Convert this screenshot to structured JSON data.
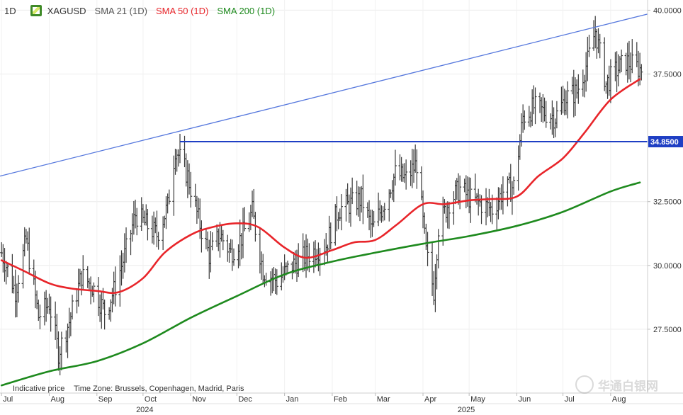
{
  "legend": {
    "timeframe": "1D",
    "symbol": "XAGUSD",
    "sma21": "SMA 21 (1D)",
    "sma50": "SMA 50 (1D)",
    "sma200": "SMA 200 (1D)"
  },
  "footer": {
    "note": "Indicative price",
    "timezone": "Time Zone: Brussels, Copenhagen, Madrid, Paris"
  },
  "watermark": {
    "text": "华通白银网",
    "icon": "logo-circle-icon"
  },
  "colors": {
    "sma50": "#e8252a",
    "sma200": "#1e8a1e",
    "trendline": "#5577dd",
    "level": "#1f3fc4",
    "level_label_bg": "#1f3fc4",
    "bars": "#3a3a3a"
  },
  "chart_data": {
    "type": "ohlc",
    "title": "",
    "xlabel": "",
    "ylabel": "",
    "ylim": [
      25.0,
      40.4
    ],
    "yticks": [
      27.5,
      30.0,
      32.5,
      37.5,
      40.0
    ],
    "ytick_labels": [
      "27.5000",
      "30.0000",
      "32.5000",
      "37.5000",
      "40.0000"
    ],
    "xlim": [
      "2024-06-30",
      "2025-08-25"
    ],
    "month_ticks": [
      {
        "date": "2024-07-01",
        "label": "Jul"
      },
      {
        "date": "2024-08-01",
        "label": "Aug"
      },
      {
        "date": "2024-09-01",
        "label": "Sep"
      },
      {
        "date": "2024-10-01",
        "label": "Oct"
      },
      {
        "date": "2024-11-01",
        "label": "Nov"
      },
      {
        "date": "2024-12-01",
        "label": "Dec"
      },
      {
        "date": "2025-01-01",
        "label": "Jan"
      },
      {
        "date": "2025-02-01",
        "label": "Feb"
      },
      {
        "date": "2025-03-01",
        "label": "Mar"
      },
      {
        "date": "2025-04-01",
        "label": "Apr"
      },
      {
        "date": "2025-05-01",
        "label": "May"
      },
      {
        "date": "2025-06-01",
        "label": "Jun"
      },
      {
        "date": "2025-07-01",
        "label": "Jul"
      },
      {
        "date": "2025-08-01",
        "label": "Aug"
      }
    ],
    "year_ticks": [
      {
        "date": "2024-10-02",
        "label": "2024"
      },
      {
        "date": "2025-04-29",
        "label": "2025"
      }
    ],
    "horizontal_level": {
      "value": 34.85,
      "label": "34.8500",
      "from_date": "2024-10-25"
    },
    "trendline": {
      "start": {
        "date": "2024-06-30",
        "value": 33.5
      },
      "end": {
        "date": "2025-08-25",
        "value": 39.85
      }
    },
    "price_path": [
      [
        "2024-07-01",
        30.5
      ],
      [
        "2024-07-10",
        29.0
      ],
      [
        "2024-07-17",
        31.0
      ],
      [
        "2024-07-25",
        28.0
      ],
      [
        "2024-08-01",
        28.5
      ],
      [
        "2024-08-07",
        26.6
      ],
      [
        "2024-08-14",
        27.8
      ],
      [
        "2024-08-22",
        29.6
      ],
      [
        "2024-08-29",
        29.2
      ],
      [
        "2024-09-06",
        28.2
      ],
      [
        "2024-09-12",
        29.0
      ],
      [
        "2024-09-20",
        30.6
      ],
      [
        "2024-09-26",
        32.0
      ],
      [
        "2024-10-03",
        31.6
      ],
      [
        "2024-10-10",
        31.2
      ],
      [
        "2024-10-17",
        32.3
      ],
      [
        "2024-10-22",
        34.6
      ],
      [
        "2024-10-30",
        33.5
      ],
      [
        "2024-11-06",
        31.8
      ],
      [
        "2024-11-13",
        30.4
      ],
      [
        "2024-11-20",
        31.2
      ],
      [
        "2024-11-27",
        30.5
      ],
      [
        "2024-12-04",
        31.1
      ],
      [
        "2024-12-11",
        32.1
      ],
      [
        "2024-12-18",
        29.8
      ],
      [
        "2024-12-27",
        29.4
      ],
      [
        "2025-01-06",
        30.0
      ],
      [
        "2025-01-13",
        30.3
      ],
      [
        "2025-01-21",
        30.6
      ],
      [
        "2025-01-28",
        30.8
      ],
      [
        "2025-02-05",
        32.2
      ],
      [
        "2025-02-13",
        32.4
      ],
      [
        "2025-02-20",
        32.6
      ],
      [
        "2025-02-27",
        31.4
      ],
      [
        "2025-03-07",
        32.5
      ],
      [
        "2025-03-14",
        33.6
      ],
      [
        "2025-03-21",
        33.4
      ],
      [
        "2025-03-28",
        34.0
      ],
      [
        "2025-04-03",
        30.5
      ],
      [
        "2025-04-08",
        29.0
      ],
      [
        "2025-04-11",
        31.5
      ],
      [
        "2025-04-18",
        32.5
      ],
      [
        "2025-04-25",
        33.0
      ],
      [
        "2025-05-02",
        32.6
      ],
      [
        "2025-05-09",
        32.4
      ],
      [
        "2025-05-16",
        32.2
      ],
      [
        "2025-05-23",
        32.9
      ],
      [
        "2025-05-30",
        33.1
      ],
      [
        "2025-06-05",
        35.8
      ],
      [
        "2025-06-12",
        36.2
      ],
      [
        "2025-06-19",
        36.0
      ],
      [
        "2025-06-26",
        35.8
      ],
      [
        "2025-07-03",
        36.6
      ],
      [
        "2025-07-10",
        36.8
      ],
      [
        "2025-07-17",
        38.0
      ],
      [
        "2025-07-22",
        39.2
      ],
      [
        "2025-07-29",
        37.1
      ],
      [
        "2025-08-04",
        37.6
      ],
      [
        "2025-08-11",
        38.0
      ],
      [
        "2025-08-20",
        37.7
      ]
    ],
    "series": [
      {
        "name": "SMA 50 (1D)",
        "color": "#e8252a",
        "points": [
          [
            "2024-07-01",
            30.2
          ],
          [
            "2024-07-15",
            29.8
          ],
          [
            "2024-08-01",
            29.3
          ],
          [
            "2024-08-15",
            29.1
          ],
          [
            "2024-09-01",
            29.0
          ],
          [
            "2024-09-15",
            28.95
          ],
          [
            "2024-10-01",
            29.5
          ],
          [
            "2024-10-15",
            30.5
          ],
          [
            "2024-11-01",
            31.2
          ],
          [
            "2024-11-15",
            31.5
          ],
          [
            "2024-12-01",
            31.65
          ],
          [
            "2024-12-15",
            31.5
          ],
          [
            "2025-01-01",
            30.7
          ],
          [
            "2025-01-15",
            30.3
          ],
          [
            "2025-02-01",
            30.6
          ],
          [
            "2025-02-15",
            30.9
          ],
          [
            "2025-03-01",
            31.0
          ],
          [
            "2025-03-15",
            31.6
          ],
          [
            "2025-04-01",
            32.4
          ],
          [
            "2025-04-15",
            32.4
          ],
          [
            "2025-05-01",
            32.55
          ],
          [
            "2025-05-15",
            32.6
          ],
          [
            "2025-06-01",
            32.7
          ],
          [
            "2025-06-15",
            33.5
          ],
          [
            "2025-07-01",
            34.2
          ],
          [
            "2025-07-15",
            35.2
          ],
          [
            "2025-08-01",
            36.5
          ],
          [
            "2025-08-20",
            37.3
          ]
        ]
      },
      {
        "name": "SMA 200 (1D)",
        "color": "#1e8a1e",
        "points": [
          [
            "2024-07-01",
            25.3
          ],
          [
            "2024-08-01",
            25.85
          ],
          [
            "2024-09-01",
            26.25
          ],
          [
            "2024-10-01",
            26.95
          ],
          [
            "2024-11-01",
            27.95
          ],
          [
            "2024-12-01",
            28.8
          ],
          [
            "2025-01-01",
            29.65
          ],
          [
            "2025-02-01",
            30.15
          ],
          [
            "2025-03-01",
            30.5
          ],
          [
            "2025-04-01",
            30.85
          ],
          [
            "2025-05-01",
            31.15
          ],
          [
            "2025-06-01",
            31.55
          ],
          [
            "2025-07-01",
            32.1
          ],
          [
            "2025-08-01",
            32.9
          ],
          [
            "2025-08-20",
            33.25
          ]
        ]
      }
    ]
  }
}
